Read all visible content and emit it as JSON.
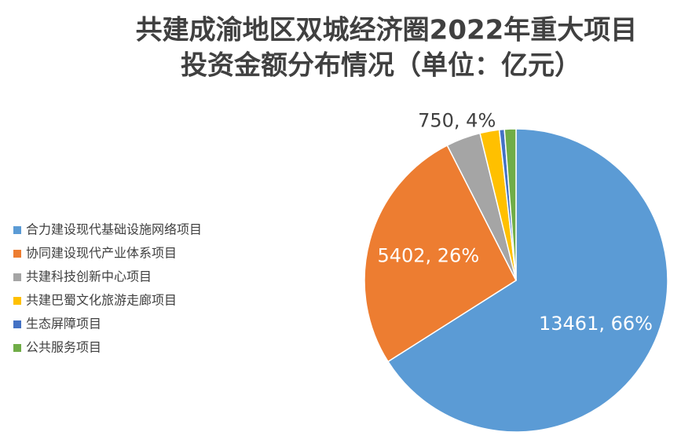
{
  "chart_data": {
    "type": "pie",
    "title": [
      "共建成渝地区双城经济圈2022年重大项目",
      "投资金额分布情况（单位：亿元）"
    ],
    "categories": [
      "合力建设现代基础设施网络项目",
      "协同建设现代产业体系项目",
      "共建科技创新中心项目",
      "共建巴蜀文化旅游走廊项目",
      "生态屏障项目",
      "公共服务项目"
    ],
    "values": [
      13461,
      5402,
      750,
      420,
      110,
      250
    ],
    "value_labels": [
      "13461, 66%",
      "5402, 26%",
      "750, 4%",
      null,
      null,
      null
    ],
    "colors": [
      "#5b9bd5",
      "#ed7d31",
      "#a5a5a5",
      "#ffc000",
      "#4472c4",
      "#70ad47"
    ],
    "legend": "left"
  }
}
